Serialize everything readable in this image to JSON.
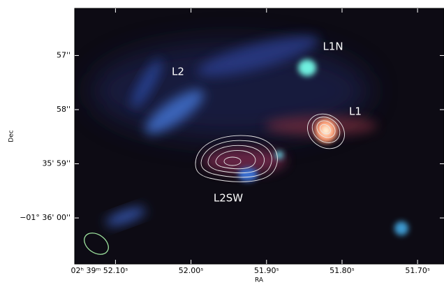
{
  "chart_data": {
    "type": "image",
    "x_label": "RA",
    "y_label": "Dec",
    "xlim": [
      52.154,
      51.665
    ],
    "xticks": [
      {
        "value": 52.1,
        "label": "02ʰ 39ᵐ 52.10ˢ"
      },
      {
        "value": 52.0,
        "label": "52.00ˢ"
      },
      {
        "value": 51.9,
        "label": "51.90ˢ"
      },
      {
        "value": 51.8,
        "label": "51.80ˢ"
      },
      {
        "value": 51.7,
        "label": "51.70ˢ"
      }
    ],
    "ylim": [
      56.13,
      60.85
    ],
    "yticks": [
      {
        "value": 57,
        "label": "57''"
      },
      {
        "value": 58,
        "label": "58''"
      },
      {
        "value": 59,
        "label": "35' 59''"
      },
      {
        "value": 60,
        "label": "−01° 36' 00''"
      }
    ],
    "annotations": [
      "L1N",
      "L2",
      "L1",
      "L2SW"
    ]
  }
}
